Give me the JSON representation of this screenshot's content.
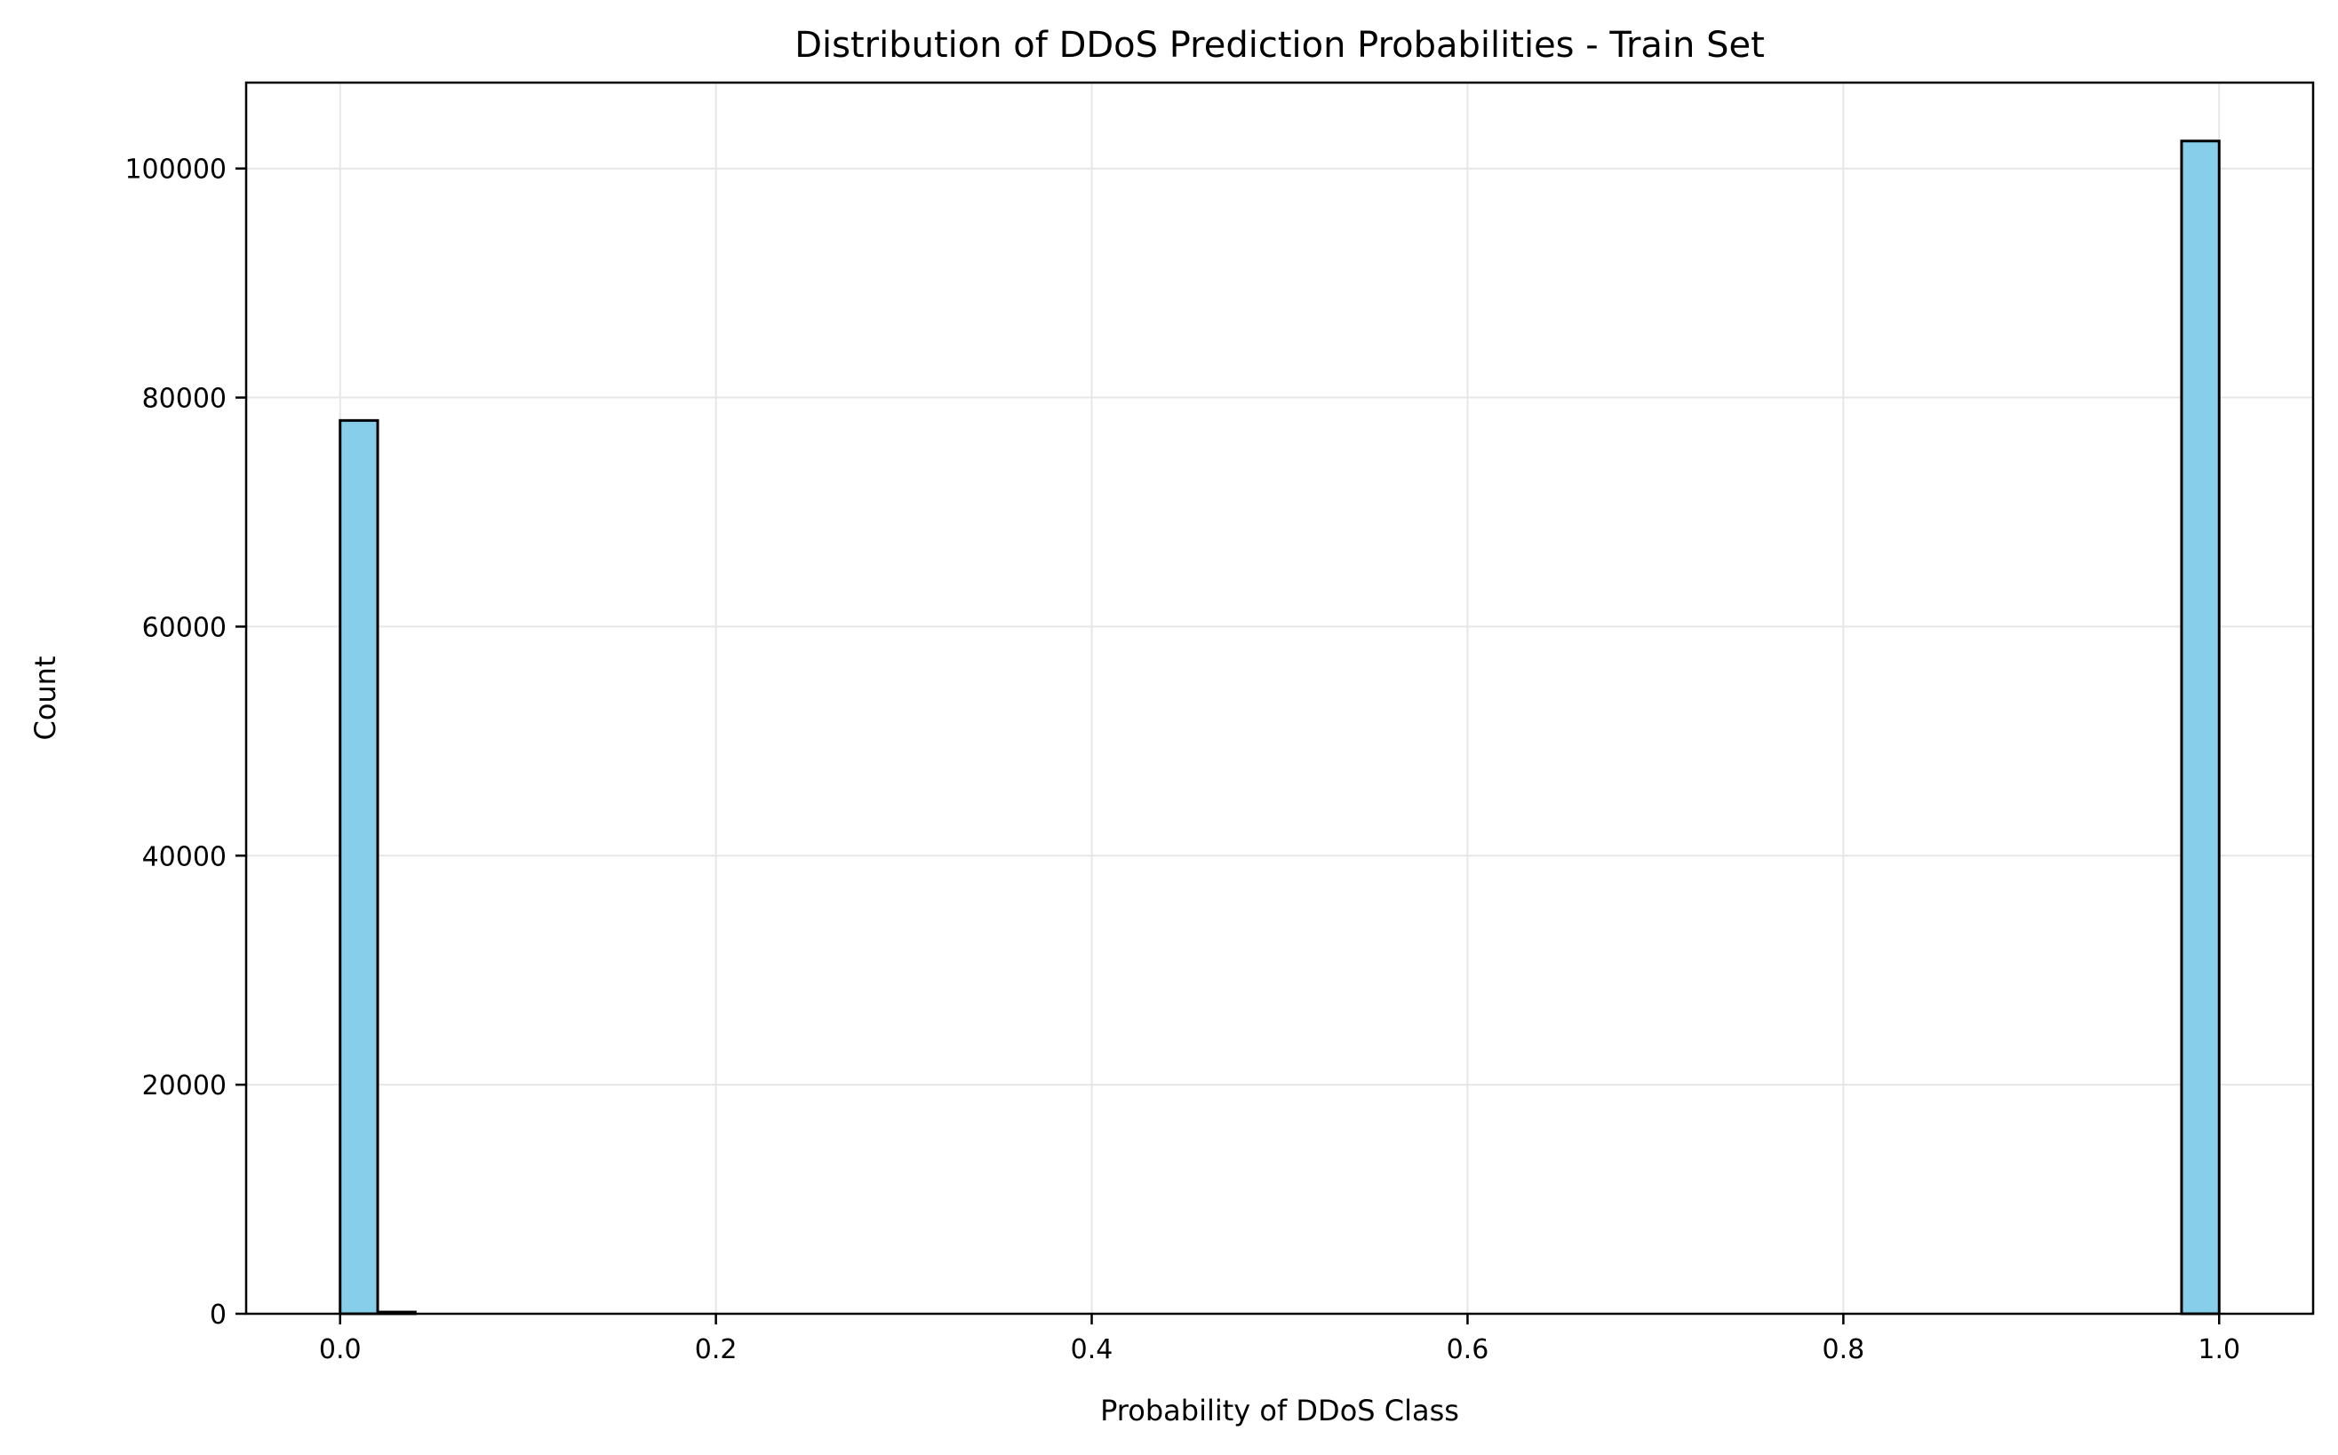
{
  "chart_data": {
    "type": "bar",
    "title": "Distribution of DDoS Prediction Probabilities - Train Set",
    "xlabel": "Probability of DDoS Class",
    "ylabel": "Count",
    "xlim": [
      -0.05,
      1.05
    ],
    "ylim": [
      0,
      107500
    ],
    "grid": true,
    "bar_color": "#87ceeb",
    "edge_color": "#000000",
    "grid_color": "#e6e6e6",
    "x_ticks": [
      0.0,
      0.2,
      0.4,
      0.6,
      0.8,
      1.0
    ],
    "x_tick_labels": [
      "0.0",
      "0.2",
      "0.4",
      "0.6",
      "0.8",
      "1.0"
    ],
    "y_ticks": [
      0,
      20000,
      40000,
      60000,
      80000,
      100000
    ],
    "y_tick_labels": [
      "0",
      "20000",
      "40000",
      "60000",
      "80000",
      "100000"
    ],
    "bins": [
      {
        "x0": 0.0,
        "x1": 0.02,
        "count": 78000
      },
      {
        "x0": 0.02,
        "x1": 0.04,
        "count": 150
      },
      {
        "x0": 0.98,
        "x1": 1.0,
        "count": 102400
      }
    ]
  }
}
